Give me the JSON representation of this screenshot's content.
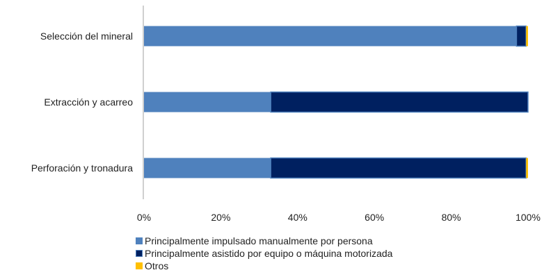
{
  "chart_data": {
    "type": "bar",
    "orientation": "horizontal",
    "stacked": true,
    "normalized_percent": true,
    "categories": [
      "Selección del mineral",
      "Extracción y acarreo",
      "Perforación y tronadura"
    ],
    "series": [
      {
        "name": "Principalmente impulsado manualmente por persona",
        "values": [
          97,
          33,
          33
        ],
        "color": "#4f81bd"
      },
      {
        "name": "Principalmente asistido por equipo o máquina motorizada",
        "values": [
          2.5,
          67,
          66.5
        ],
        "color": "#002060"
      },
      {
        "name": "Otros",
        "values": [
          0.5,
          0,
          0.5
        ],
        "color": "#ffc000"
      }
    ],
    "xlim": [
      0,
      100
    ],
    "x_ticks": [
      "0%",
      "20%",
      "40%",
      "60%",
      "80%",
      "100%"
    ],
    "grid": false,
    "legend_position": "bottom-left"
  }
}
